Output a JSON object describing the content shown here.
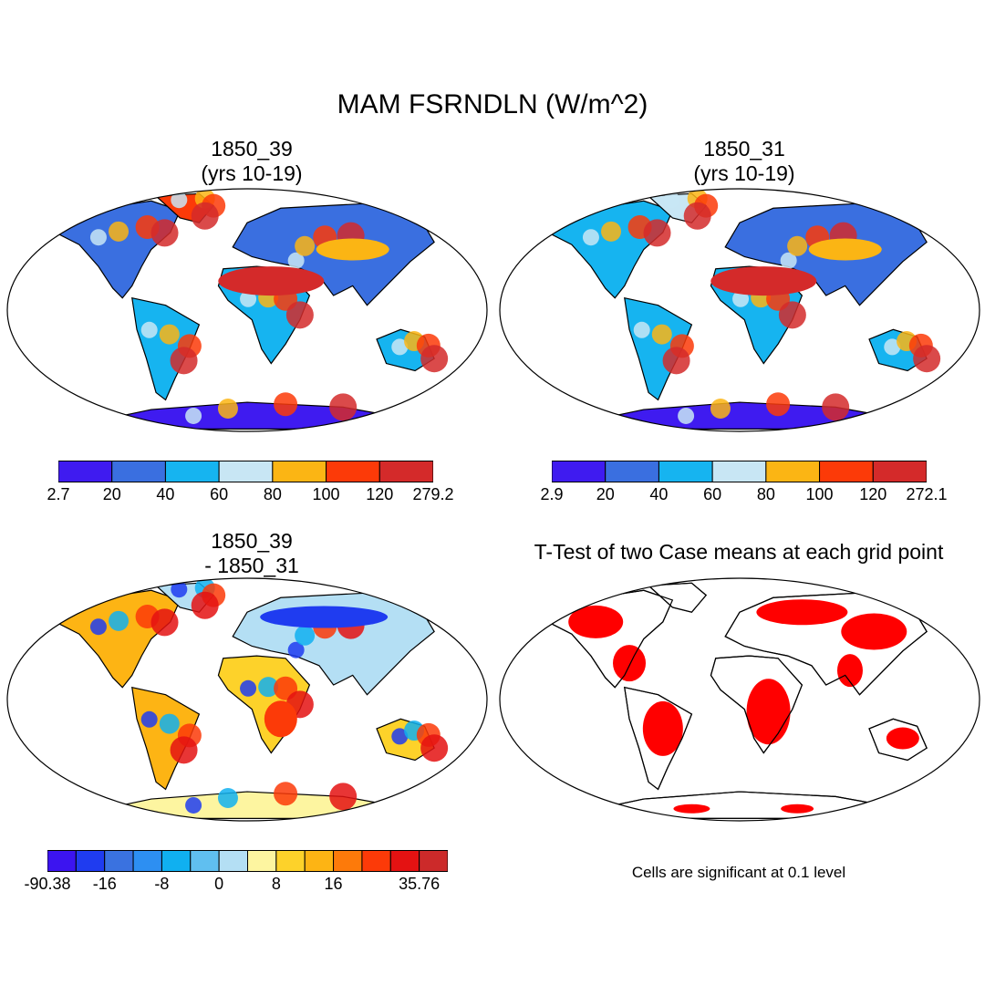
{
  "figure": {
    "title": "MAM FSRNDLN (W/m^2)"
  },
  "panels": [
    {
      "id": "case1",
      "title_line1": "1850_39",
      "title_line2": "(yrs 10-19)",
      "colorbar": {
        "colors": [
          "#3f1bf0",
          "#3a6fe0",
          "#16b4f0",
          "#c8e6f4",
          "#fbb514",
          "#fc3a08",
          "#d42a2a"
        ],
        "labels": [
          "2.7",
          "20",
          "40",
          "60",
          "80",
          "100",
          "120",
          "279.2"
        ]
      }
    },
    {
      "id": "case2",
      "title_line1": "1850_31",
      "title_line2": "(yrs 10-19)",
      "colorbar": {
        "colors": [
          "#3f1bf0",
          "#3a6fe0",
          "#16b4f0",
          "#c8e6f4",
          "#fbb514",
          "#fc3a08",
          "#d42a2a"
        ],
        "labels": [
          "2.9",
          "20",
          "40",
          "60",
          "80",
          "100",
          "120",
          "272.1"
        ]
      }
    },
    {
      "id": "diff",
      "title_line1": "1850_39",
      "title_line2": "- 1850_31",
      "colorbar": {
        "colors": [
          "#3c14f0",
          "#1f3cf0",
          "#3a72e0",
          "#2d8ff2",
          "#10b0f0",
          "#60bff0",
          "#b4dff4",
          "#fdf5a0",
          "#fdd22a",
          "#fdb414",
          "#fd7a0a",
          "#fc3a08",
          "#e41212",
          "#cc2a2a"
        ],
        "labels": [
          "-90.38",
          "",
          "-16",
          "",
          "-8",
          "",
          "0",
          "",
          "8",
          "",
          "16",
          "",
          "",
          "35.76"
        ]
      }
    },
    {
      "id": "ttest",
      "title_line1": "T-Test of two Case means at each grid point",
      "note": "Cells are significant at 0.1 level",
      "significance_color": "#ff0000"
    }
  ]
}
